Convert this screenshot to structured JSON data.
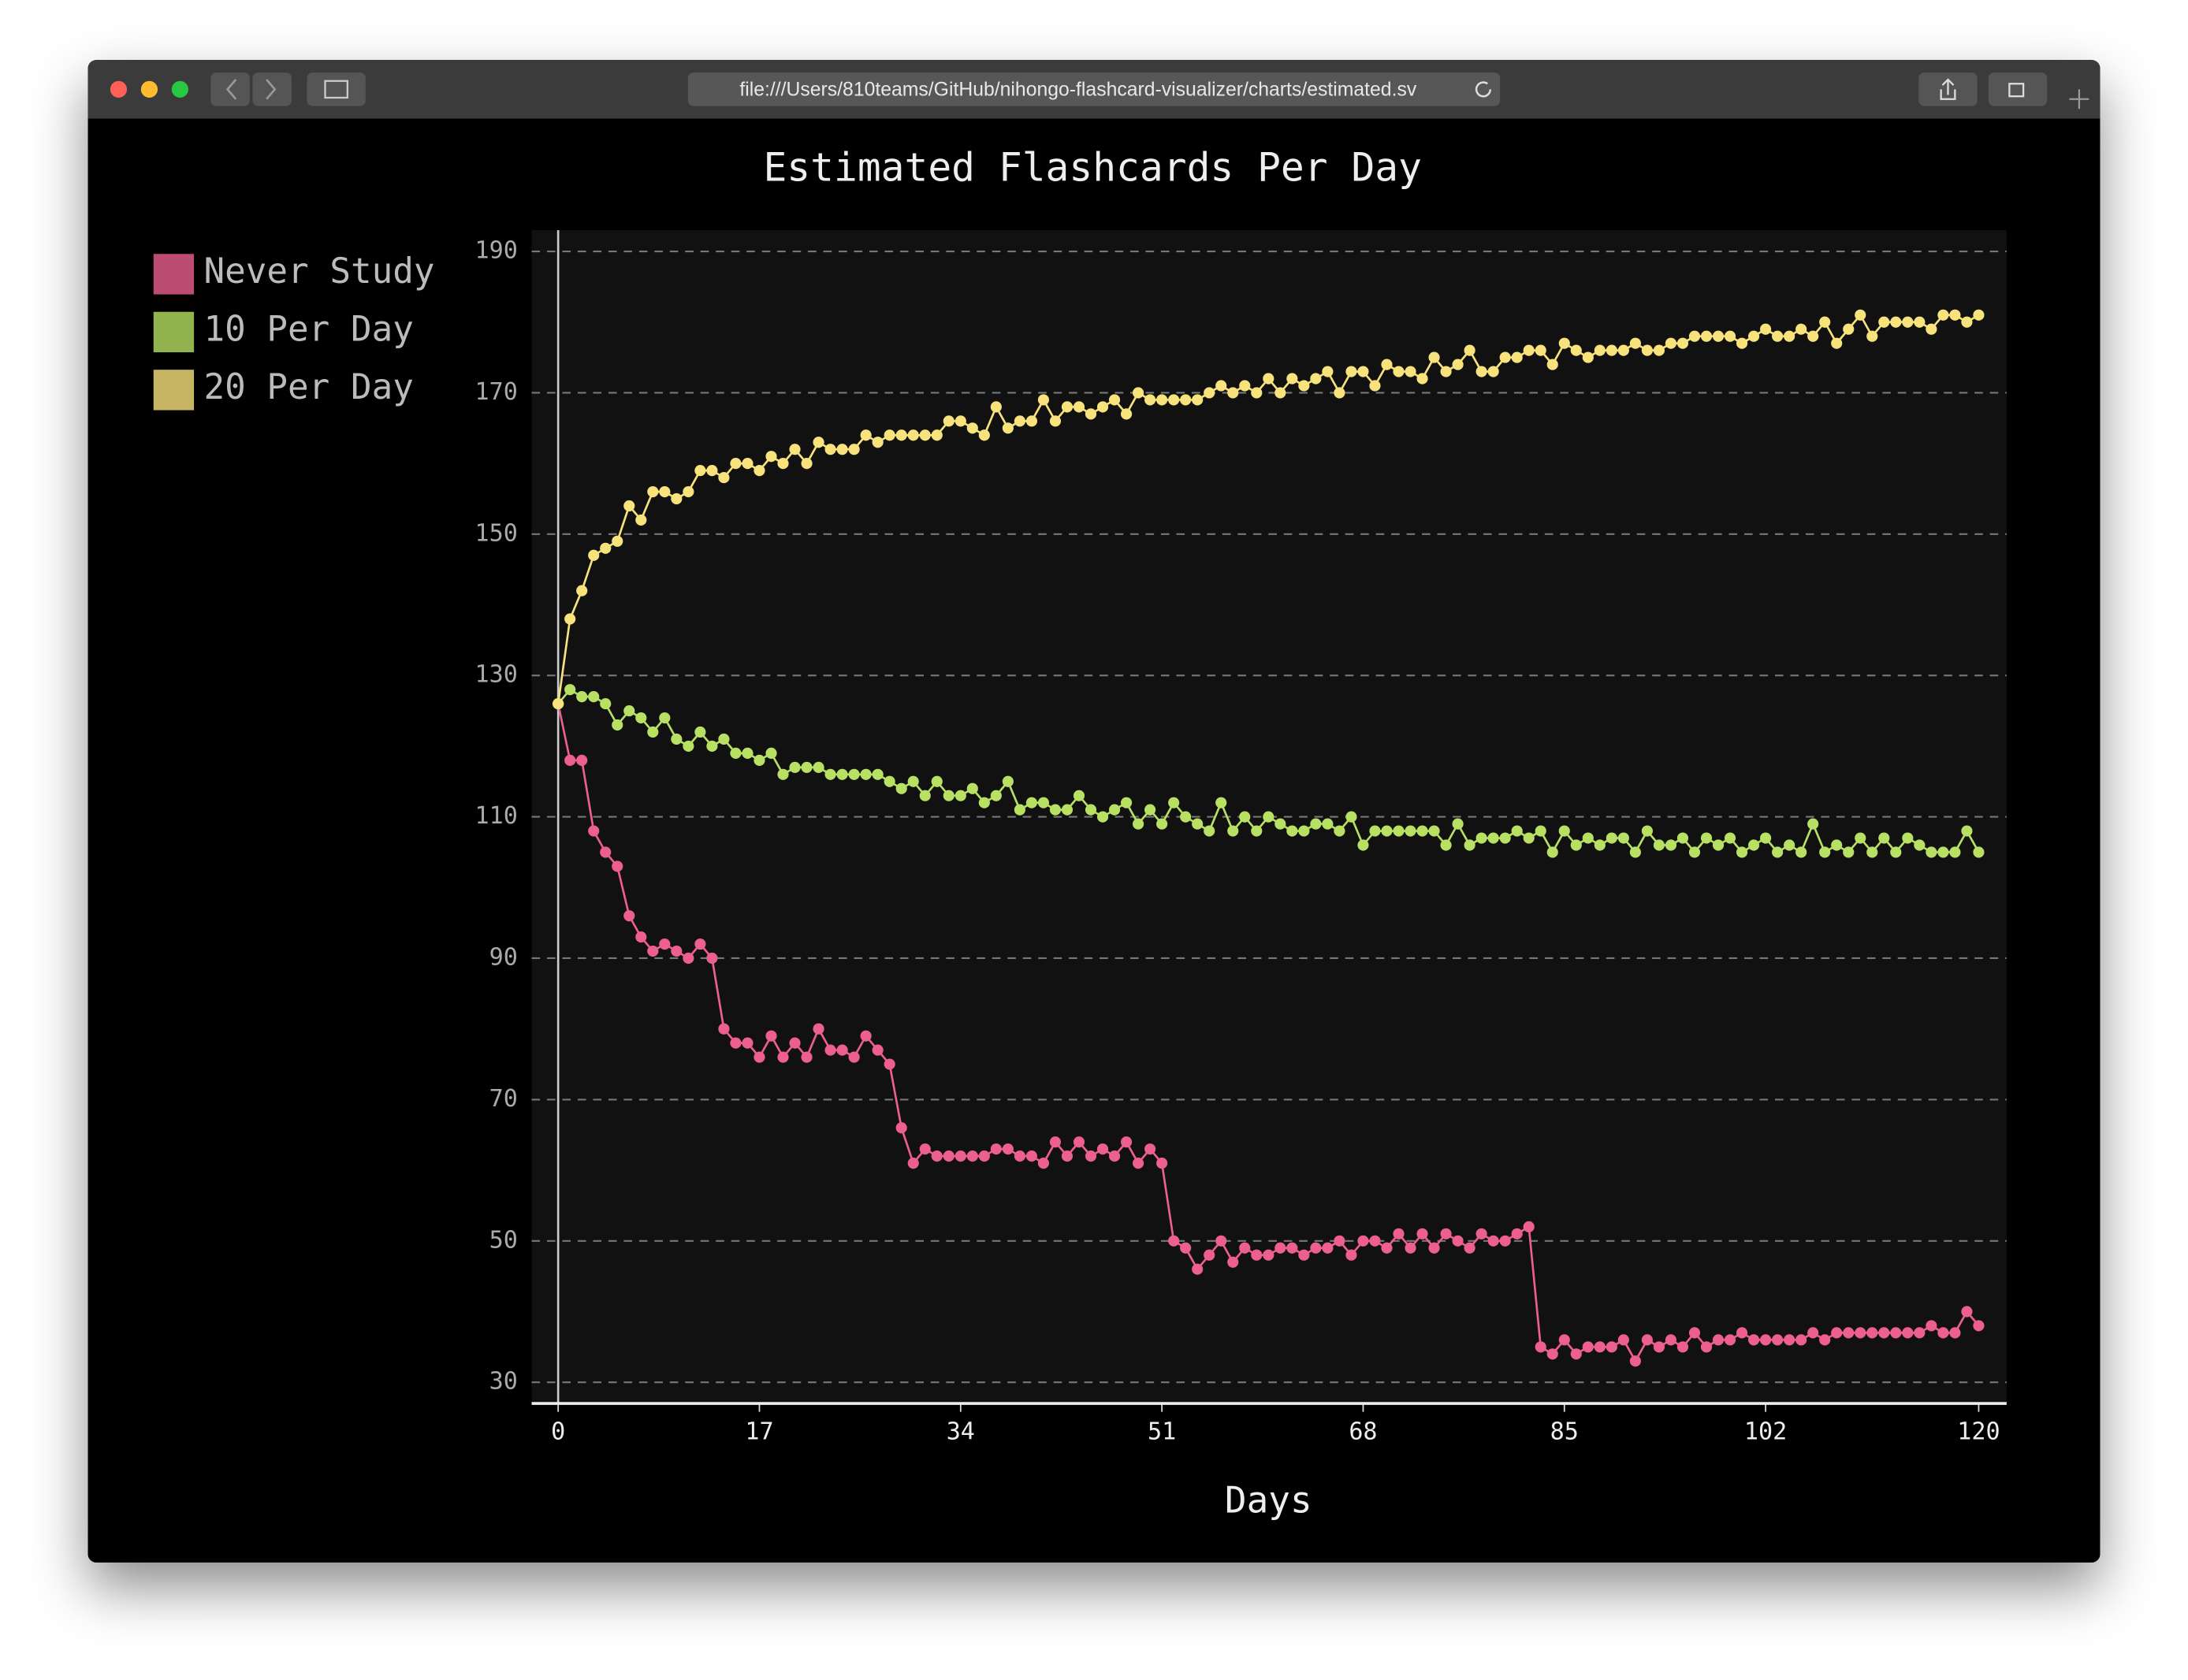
{
  "browser": {
    "url": "file:///Users/810teams/GitHub/nihongo-flashcard-visualizer/charts/estimated.sv"
  },
  "chart_data": {
    "type": "line",
    "title": "Estimated Flashcards Per Day",
    "x_label": "Days",
    "x": [
      0,
      1,
      2,
      3,
      4,
      5,
      6,
      7,
      8,
      9,
      10,
      11,
      12,
      13,
      14,
      15,
      16,
      17,
      18,
      19,
      20,
      21,
      22,
      23,
      24,
      25,
      26,
      27,
      28,
      29,
      30,
      31,
      32,
      33,
      34,
      35,
      36,
      37,
      38,
      39,
      40,
      41,
      42,
      43,
      44,
      45,
      46,
      47,
      48,
      49,
      50,
      51,
      52,
      53,
      54,
      55,
      56,
      57,
      58,
      59,
      60,
      61,
      62,
      63,
      64,
      65,
      66,
      67,
      68,
      69,
      70,
      71,
      72,
      73,
      74,
      75,
      76,
      77,
      78,
      79,
      80,
      81,
      82,
      83,
      84,
      85,
      86,
      87,
      88,
      89,
      90,
      91,
      92,
      93,
      94,
      95,
      96,
      97,
      98,
      99,
      100,
      101,
      102,
      103,
      104,
      105,
      106,
      107,
      108,
      109,
      110,
      111,
      112,
      113,
      114,
      115,
      116,
      117,
      118,
      119,
      120
    ],
    "series": [
      {
        "name": "Never Study",
        "color": "#ec5f8e",
        "values": [
          126,
          118,
          118,
          108,
          105,
          103,
          96,
          93,
          91,
          92,
          91,
          90,
          92,
          90,
          80,
          78,
          78,
          76,
          79,
          76,
          78,
          76,
          80,
          77,
          77,
          76,
          79,
          77,
          75,
          66,
          61,
          63,
          62,
          62,
          62,
          62,
          62,
          63,
          63,
          62,
          62,
          61,
          64,
          62,
          64,
          62,
          63,
          62,
          64,
          61,
          63,
          61,
          50,
          49,
          46,
          48,
          50,
          47,
          49,
          48,
          48,
          49,
          49,
          48,
          49,
          49,
          50,
          48,
          50,
          50,
          49,
          51,
          49,
          51,
          49,
          51,
          50,
          49,
          51,
          50,
          50,
          51,
          52,
          35,
          34,
          36,
          34,
          35,
          35,
          35,
          36,
          33,
          36,
          35,
          36,
          35,
          37,
          35,
          36,
          36,
          37,
          36,
          36,
          36,
          36,
          36,
          37,
          36,
          37,
          37,
          37,
          37,
          37,
          37,
          37,
          37,
          38,
          37,
          37,
          40,
          38
        ]
      },
      {
        "name": "10 Per Day",
        "color": "#b8e063",
        "values": [
          126,
          128,
          127,
          127,
          126,
          123,
          125,
          124,
          122,
          124,
          121,
          120,
          122,
          120,
          121,
          119,
          119,
          118,
          119,
          116,
          117,
          117,
          117,
          116,
          116,
          116,
          116,
          116,
          115,
          114,
          115,
          113,
          115,
          113,
          113,
          114,
          112,
          113,
          115,
          111,
          112,
          112,
          111,
          111,
          113,
          111,
          110,
          111,
          112,
          109,
          111,
          109,
          112,
          110,
          109,
          108,
          112,
          108,
          110,
          108,
          110,
          109,
          108,
          108,
          109,
          109,
          108,
          110,
          106,
          108,
          108,
          108,
          108,
          108,
          108,
          106,
          109,
          106,
          107,
          107,
          107,
          108,
          107,
          108,
          105,
          108,
          106,
          107,
          106,
          107,
          107,
          105,
          108,
          106,
          106,
          107,
          105,
          107,
          106,
          107,
          105,
          106,
          107,
          105,
          106,
          105,
          109,
          105,
          106,
          105,
          107,
          105,
          107,
          105,
          107,
          106,
          105,
          105,
          105,
          108,
          105
        ]
      },
      {
        "name": "20 Per Day",
        "color": "#f7e27c",
        "values": [
          126,
          138,
          142,
          147,
          148,
          149,
          154,
          152,
          156,
          156,
          155,
          156,
          159,
          159,
          158,
          160,
          160,
          159,
          161,
          160,
          162,
          160,
          163,
          162,
          162,
          162,
          164,
          163,
          164,
          164,
          164,
          164,
          164,
          166,
          166,
          165,
          164,
          168,
          165,
          166,
          166,
          169,
          166,
          168,
          168,
          167,
          168,
          169,
          167,
          170,
          169,
          169,
          169,
          169,
          169,
          170,
          171,
          170,
          171,
          170,
          172,
          170,
          172,
          171,
          172,
          173,
          170,
          173,
          173,
          171,
          174,
          173,
          173,
          172,
          175,
          173,
          174,
          176,
          173,
          173,
          175,
          175,
          176,
          176,
          174,
          177,
          176,
          175,
          176,
          176,
          176,
          177,
          176,
          176,
          177,
          177,
          178,
          178,
          178,
          178,
          177,
          178,
          179,
          178,
          178,
          179,
          178,
          180,
          177,
          179,
          181,
          178,
          180,
          180,
          180,
          180,
          179,
          181,
          181,
          180,
          181
        ]
      }
    ],
    "xlim": [
      0,
      120
    ],
    "xticks": [
      0,
      17,
      34,
      51,
      68,
      85,
      102,
      120
    ],
    "ylim": [
      27,
      193
    ],
    "yticks": [
      30,
      50,
      70,
      90,
      110,
      130,
      150,
      170,
      190
    ],
    "grid": true,
    "legend": "left"
  }
}
